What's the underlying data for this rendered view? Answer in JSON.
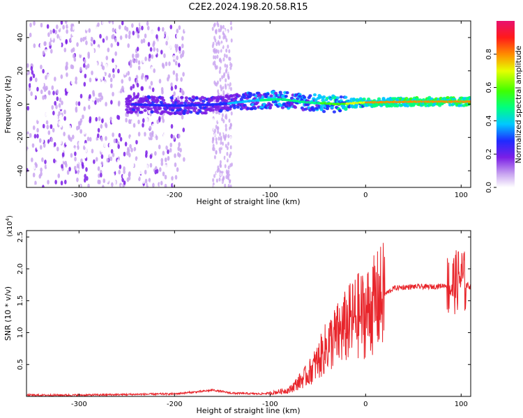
{
  "title": "C2E2.2024.198.20.58.R15",
  "chart_data": [
    {
      "type": "heatmap",
      "xlabel": "Height of straight line (km)",
      "ylabel": "Frequency (Hz)",
      "xlim": [
        -355,
        110
      ],
      "ylim": [
        -50,
        50
      ],
      "x_ticks": [
        -300,
        -200,
        -100,
        0,
        100
      ],
      "y_ticks": [
        -40,
        -20,
        0,
        20,
        40
      ],
      "colorbar": {
        "label": "Normalized spectral amplitude",
        "range": [
          0,
          1
        ],
        "ticks": [
          0.0,
          0.2,
          0.4,
          0.6,
          0.8
        ],
        "tick_labels": [
          "0.0",
          "0.2",
          "0.4",
          "0.6",
          "0.8"
        ]
      },
      "features": {
        "noise_region_x": [
          -355,
          -190
        ],
        "noise_band_x": [
          -160,
          -140
        ],
        "signal_trace": [
          {
            "x": -250,
            "y": 0,
            "amp": 0.3
          },
          {
            "x": -200,
            "y": -1,
            "amp": 0.4
          },
          {
            "x": -150,
            "y": 0,
            "amp": 0.4
          },
          {
            "x": -120,
            "y": 2,
            "amp": 0.5
          },
          {
            "x": -90,
            "y": 3,
            "amp": 0.6
          },
          {
            "x": -60,
            "y": 1,
            "amp": 0.6
          },
          {
            "x": -30,
            "y": 0,
            "amp": 0.7
          },
          {
            "x": 0,
            "y": 1,
            "amp": 0.8
          },
          {
            "x": 50,
            "y": 1.5,
            "amp": 0.85
          },
          {
            "x": 110,
            "y": 1.5,
            "amp": 0.9
          }
        ]
      }
    },
    {
      "type": "line",
      "xlabel": "Height of straight line (km)",
      "ylabel": "SNR (10 * v/v)",
      "yscale_label": "(x10",
      "yscale_exp": "4",
      "yscale_close": ")",
      "xlim": [
        -355,
        110
      ],
      "ylim": [
        0,
        2.6
      ],
      "x_ticks": [
        -300,
        -200,
        -100,
        0,
        100
      ],
      "y_ticks": [
        0.5,
        1.0,
        1.5,
        2.0,
        2.5
      ],
      "series": [
        {
          "color": "#e8242a",
          "x": [
            -355,
            -300,
            -250,
            -200,
            -170,
            -160,
            -140,
            -110,
            -100,
            -80,
            -60,
            -50,
            -40,
            -30,
            -20,
            -10,
            0,
            10,
            20,
            30,
            50,
            70,
            90,
            95,
            100,
            105,
            110
          ],
          "y": [
            0.02,
            0.02,
            0.03,
            0.04,
            0.08,
            0.1,
            0.05,
            0.04,
            0.05,
            0.1,
            0.35,
            0.55,
            0.8,
            0.95,
            1.1,
            1.25,
            1.3,
            1.45,
            1.6,
            1.7,
            1.72,
            1.72,
            1.75,
            1.8,
            1.9,
            1.75,
            1.72
          ]
        }
      ]
    }
  ]
}
